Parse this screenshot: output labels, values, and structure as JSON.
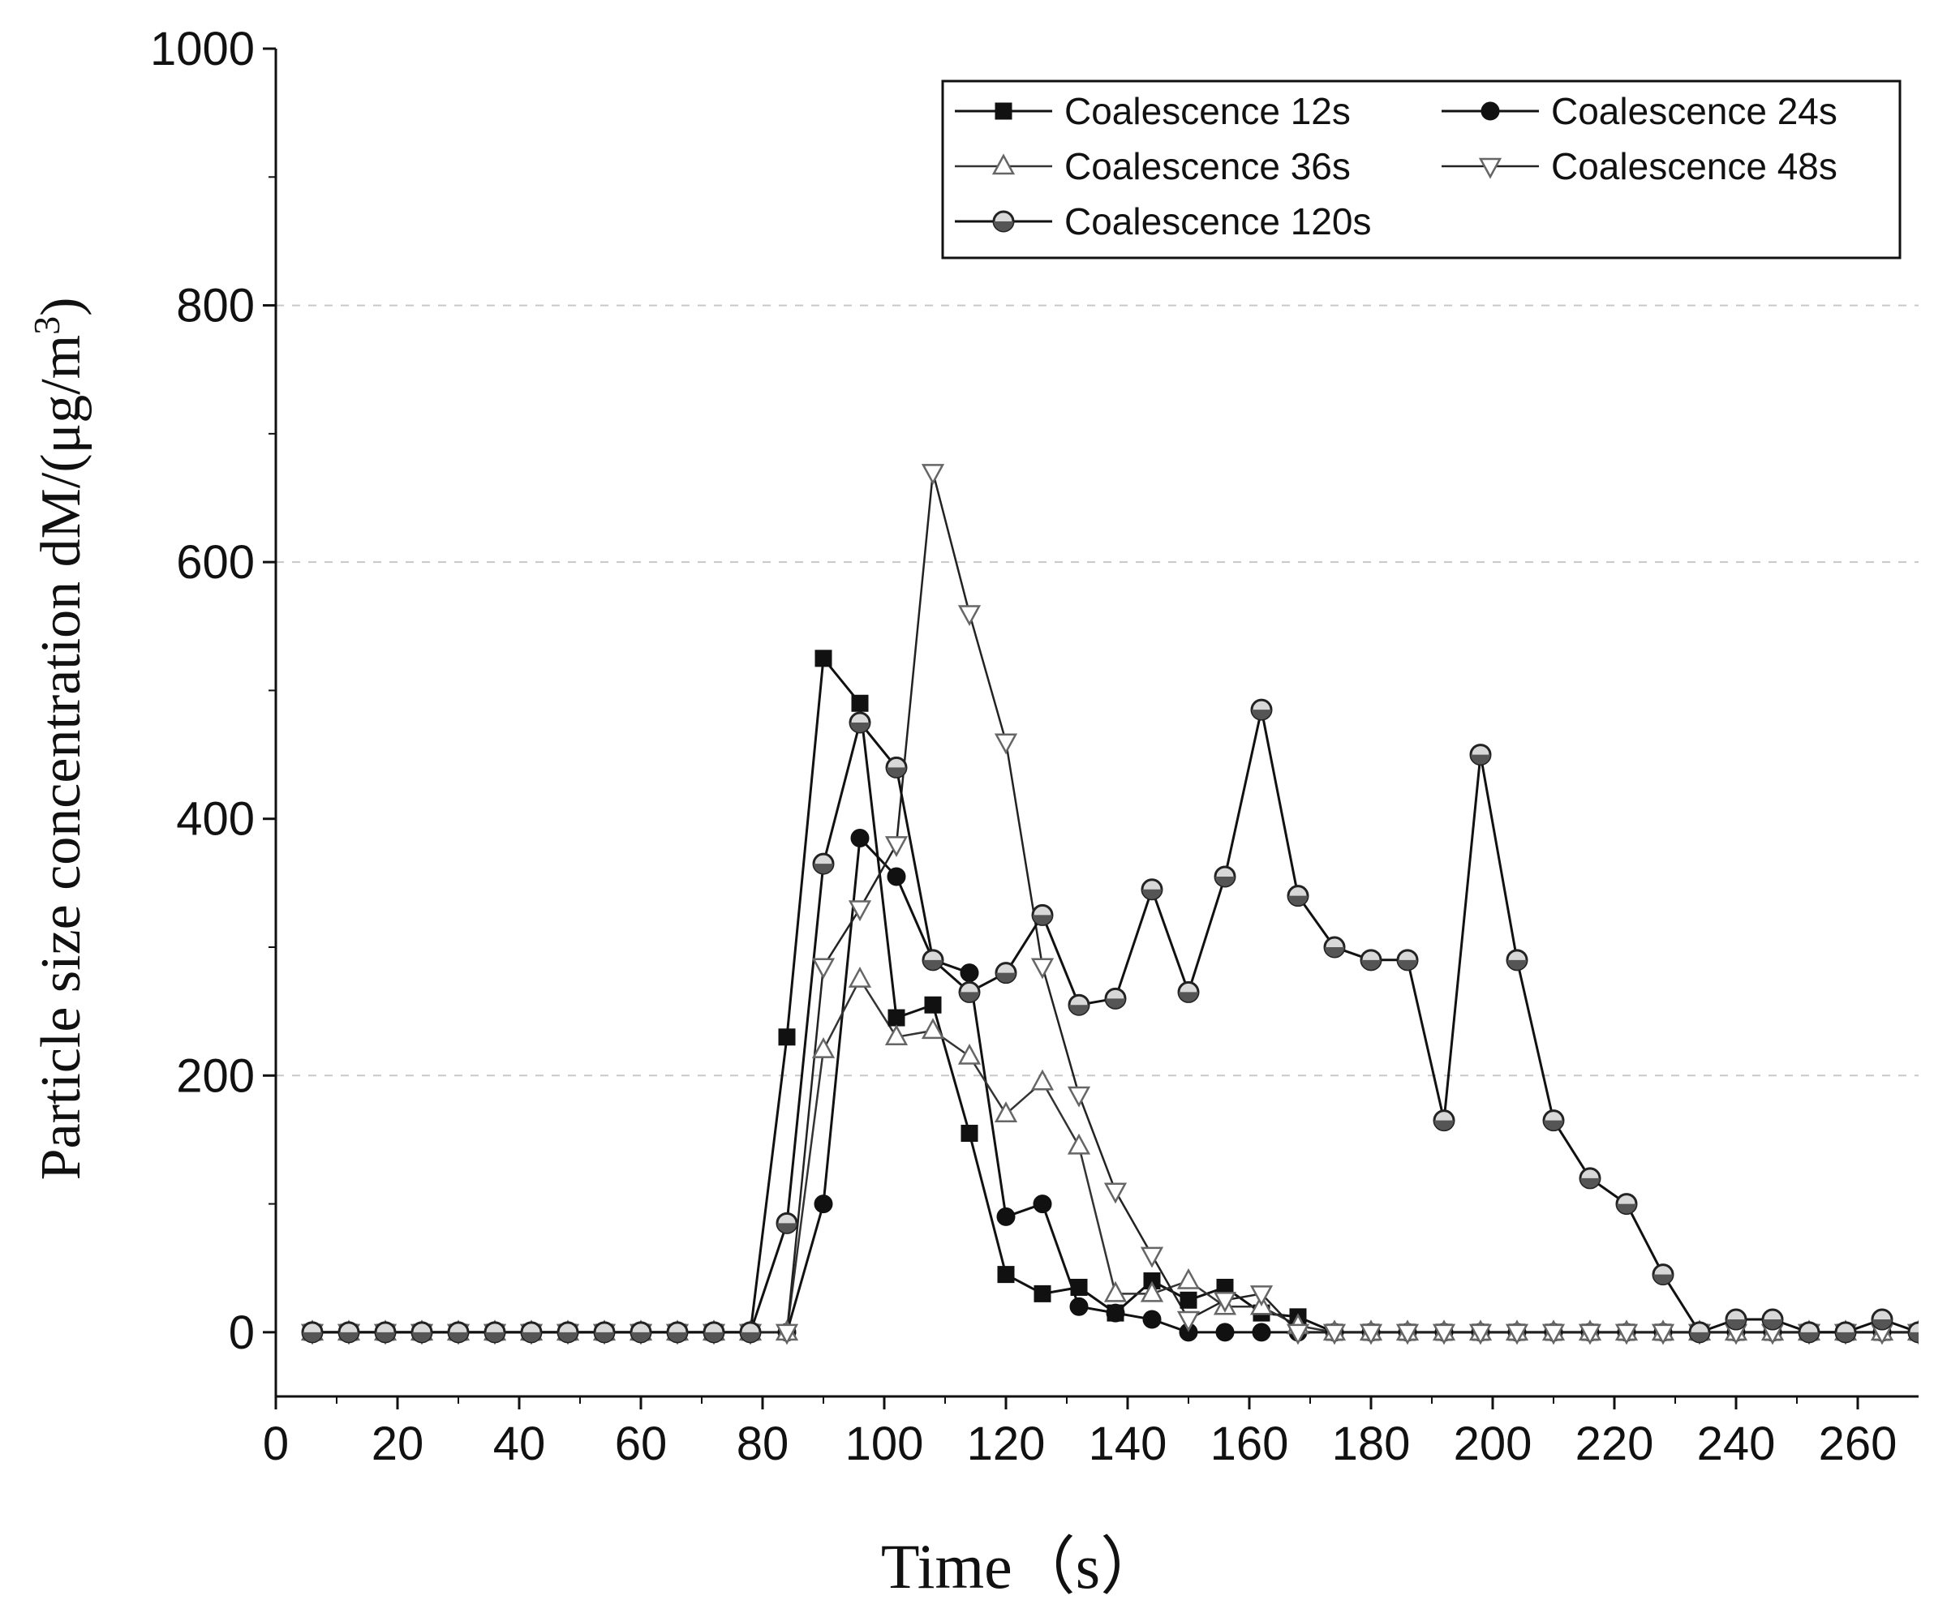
{
  "chart_data": {
    "type": "line",
    "title": "",
    "xlabel": "Time（s）",
    "ylabel": "Particle size concentration dM/(μg/m³)",
    "ylabel_parts": {
      "main": "Particle size concentration dM/(μg/m",
      "sup": "3",
      "tail": ")"
    },
    "xlim": [
      0,
      270
    ],
    "ylim": [
      -50,
      1000
    ],
    "x_ticks": [
      0,
      20,
      40,
      60,
      80,
      100,
      120,
      140,
      160,
      180,
      200,
      220,
      240,
      260
    ],
    "y_ticks": [
      0,
      200,
      400,
      600,
      800,
      1000
    ],
    "grid": {
      "horizontal_dashed": [
        200,
        600,
        800
      ]
    },
    "legend_position": "top-right",
    "x": [
      6,
      12,
      18,
      24,
      30,
      36,
      42,
      48,
      54,
      60,
      66,
      72,
      78,
      84,
      90,
      96,
      102,
      108,
      114,
      120,
      126,
      132,
      138,
      144,
      150,
      156,
      162,
      168,
      174,
      180,
      186,
      192,
      198,
      204,
      210,
      216,
      222,
      228,
      234,
      240,
      246,
      252,
      258,
      264,
      270
    ],
    "series": [
      {
        "name": "Coalescence 12s",
        "marker": "filled-square",
        "values": [
          0,
          0,
          0,
          0,
          0,
          0,
          0,
          0,
          0,
          0,
          0,
          0,
          0,
          230,
          525,
          490,
          245,
          255,
          155,
          45,
          30,
          35,
          15,
          40,
          25,
          35,
          15,
          12,
          0,
          0,
          0,
          0,
          0,
          0,
          0,
          0,
          0,
          0,
          0,
          0,
          0,
          0,
          0,
          0,
          0
        ]
      },
      {
        "name": "Coalescence 24s",
        "marker": "filled-circle",
        "values": [
          0,
          0,
          0,
          0,
          0,
          0,
          0,
          0,
          0,
          0,
          0,
          0,
          0,
          0,
          100,
          385,
          355,
          290,
          280,
          90,
          100,
          20,
          15,
          10,
          0,
          0,
          0,
          0,
          0,
          0,
          0,
          0,
          0,
          0,
          0,
          0,
          0,
          0,
          0,
          0,
          0,
          0,
          0,
          0,
          0
        ]
      },
      {
        "name": "Coalescence 36s",
        "marker": "open-triangle-up",
        "values": [
          0,
          0,
          0,
          0,
          0,
          0,
          0,
          0,
          0,
          0,
          0,
          0,
          0,
          0,
          220,
          275,
          230,
          235,
          215,
          170,
          195,
          145,
          30,
          30,
          40,
          20,
          20,
          5,
          0,
          0,
          0,
          0,
          0,
          0,
          0,
          0,
          0,
          0,
          0,
          0,
          0,
          0,
          0,
          0,
          0
        ]
      },
      {
        "name": "Coalescence 48s",
        "marker": "open-triangle-down",
        "values": [
          0,
          0,
          0,
          0,
          0,
          0,
          0,
          0,
          0,
          0,
          0,
          0,
          0,
          0,
          285,
          330,
          380,
          670,
          560,
          460,
          285,
          185,
          110,
          60,
          10,
          25,
          30,
          0,
          0,
          0,
          0,
          0,
          0,
          0,
          0,
          0,
          0,
          0,
          0,
          0,
          0,
          0,
          0,
          0,
          0
        ]
      },
      {
        "name": "Coalescence 120s",
        "marker": "half-filled-circle",
        "values": [
          0,
          0,
          0,
          0,
          0,
          0,
          0,
          0,
          0,
          0,
          0,
          0,
          0,
          85,
          365,
          475,
          440,
          290,
          265,
          280,
          325,
          255,
          260,
          345,
          265,
          355,
          485,
          340,
          300,
          290,
          290,
          165,
          450,
          290,
          165,
          120,
          100,
          45,
          0,
          10,
          10,
          0,
          0,
          10,
          0
        ]
      }
    ]
  }
}
